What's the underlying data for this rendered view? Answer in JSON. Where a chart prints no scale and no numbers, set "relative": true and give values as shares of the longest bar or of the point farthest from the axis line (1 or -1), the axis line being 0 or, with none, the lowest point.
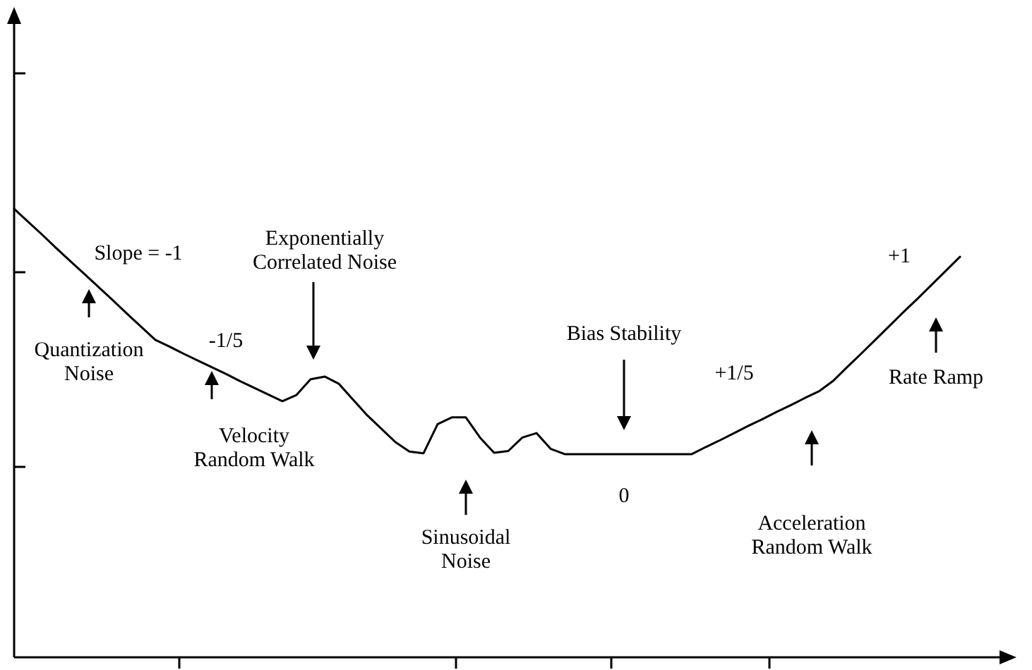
{
  "chart_data": {
    "type": "line",
    "relative": true,
    "marker": "none",
    "line_style": "solid",
    "legend": false,
    "categories": [
      null,
      null,
      null,
      null,
      null,
      null,
      null,
      null,
      null,
      null,
      null,
      null,
      null,
      null,
      null,
      null,
      null,
      null,
      null,
      null,
      null,
      null,
      null,
      null,
      null,
      null,
      null,
      null,
      null,
      null,
      null,
      null,
      null,
      null,
      null,
      null,
      null,
      null,
      null,
      null,
      null,
      null,
      null,
      null,
      null,
      null,
      null,
      null,
      null,
      null,
      null,
      null,
      null,
      null,
      null,
      null,
      null,
      null,
      null,
      null,
      null,
      null,
      null,
      null,
      null,
      null,
      null,
      null,
      null,
      null,
      null,
      null
    ],
    "series": [
      {
        "color": "#000000",
        "values": [
          1,
          0.971,
          0.942,
          0.912,
          0.883,
          0.854,
          0.825,
          0.796,
          0.766,
          0.737,
          0.708,
          0.693,
          0.677,
          0.662,
          0.647,
          0.632,
          0.616,
          0.601,
          0.586,
          0.571,
          0.585,
          0.62,
          0.626,
          0.61,
          0.575,
          0.54,
          0.51,
          0.48,
          0.459,
          0.455,
          0.52,
          0.535,
          0.535,
          0.49,
          0.456,
          0.46,
          0.49,
          0.5,
          0.465,
          0.453,
          0.453,
          0.453,
          0.453,
          0.453,
          0.453,
          0.453,
          0.453,
          0.453,
          0.453,
          0.469,
          0.484,
          0.5,
          0.516,
          0.531,
          0.547,
          0.562,
          0.578,
          0.593,
          0.616,
          0.647,
          0.677,
          0.708,
          0.739,
          0.77,
          0.8,
          0.831,
          0.862,
          0.893,
          null,
          null,
          null,
          null
        ]
      }
    ],
    "annotations": [
      "Slope = -1",
      "Quantization\nNoise",
      "-1/5",
      "Exponentially\nCorrelated Noise",
      "Velocity\nRandom Walk",
      "Sinusoidal\nNoise",
      "Bias Stability",
      "0",
      "+1/5",
      "Acceleration\nRandom Walk",
      "+1",
      "Rate Ramp"
    ]
  }
}
